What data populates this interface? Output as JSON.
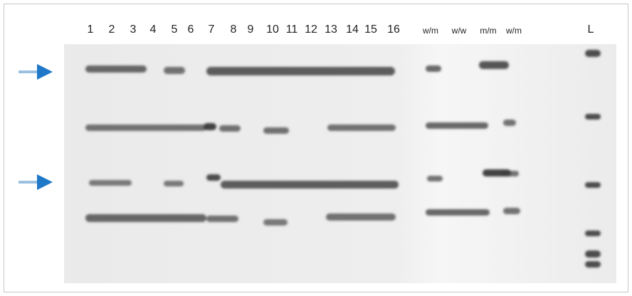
{
  "lane_labels": [
    "1",
    "2",
    "3",
    "4",
    "5",
    "6",
    "7",
    "8",
    "9",
    "10",
    "11",
    "12",
    "13",
    "14",
    "15",
    "16",
    "w/m",
    "w/w",
    "m/m",
    "w/m",
    "L"
  ],
  "arrow_color": "#1f78c8",
  "gel_colors": {
    "background": "#ececec",
    "band": "#3a3a3a"
  }
}
